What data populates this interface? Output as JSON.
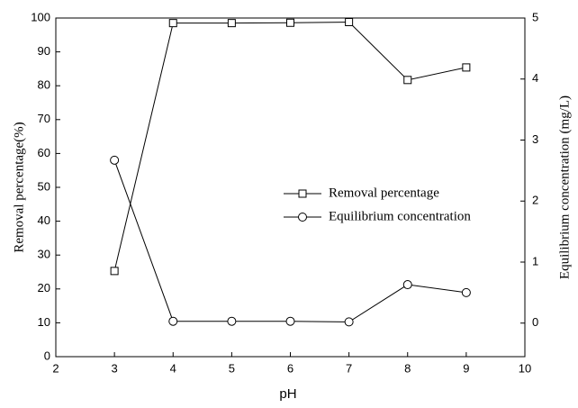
{
  "chart_data": {
    "type": "line",
    "x_label": "pH",
    "y_label": "Removal percentage(%)",
    "y2_label": "Equilibrium concentration (mg/L)",
    "x": [
      3,
      4,
      5,
      6,
      7,
      8,
      9
    ],
    "series": [
      {
        "name": "Removal percentage",
        "color": "#000000",
        "marker": "square",
        "axis": "y",
        "values": [
          25.3,
          98.5,
          98.5,
          98.6,
          98.8,
          81.7,
          85.4
        ]
      },
      {
        "name": "Equilibrium concentration",
        "color": "#000000",
        "marker": "circle",
        "axis": "y2",
        "values": [
          2.67,
          0.03,
          0.03,
          0.03,
          0.02,
          0.63,
          0.5
        ]
      }
    ],
    "xlim": [
      2,
      10
    ],
    "xticks": [
      2,
      3,
      4,
      5,
      6,
      7,
      8,
      9,
      10
    ],
    "ylim": [
      0,
      100
    ],
    "yticks": [
      0,
      10,
      20,
      30,
      40,
      50,
      60,
      70,
      80,
      90,
      100
    ],
    "y2lim": [
      -0.55,
      5
    ],
    "y2ticks": [
      0,
      1,
      2,
      3,
      4,
      5
    ],
    "grid": false
  }
}
